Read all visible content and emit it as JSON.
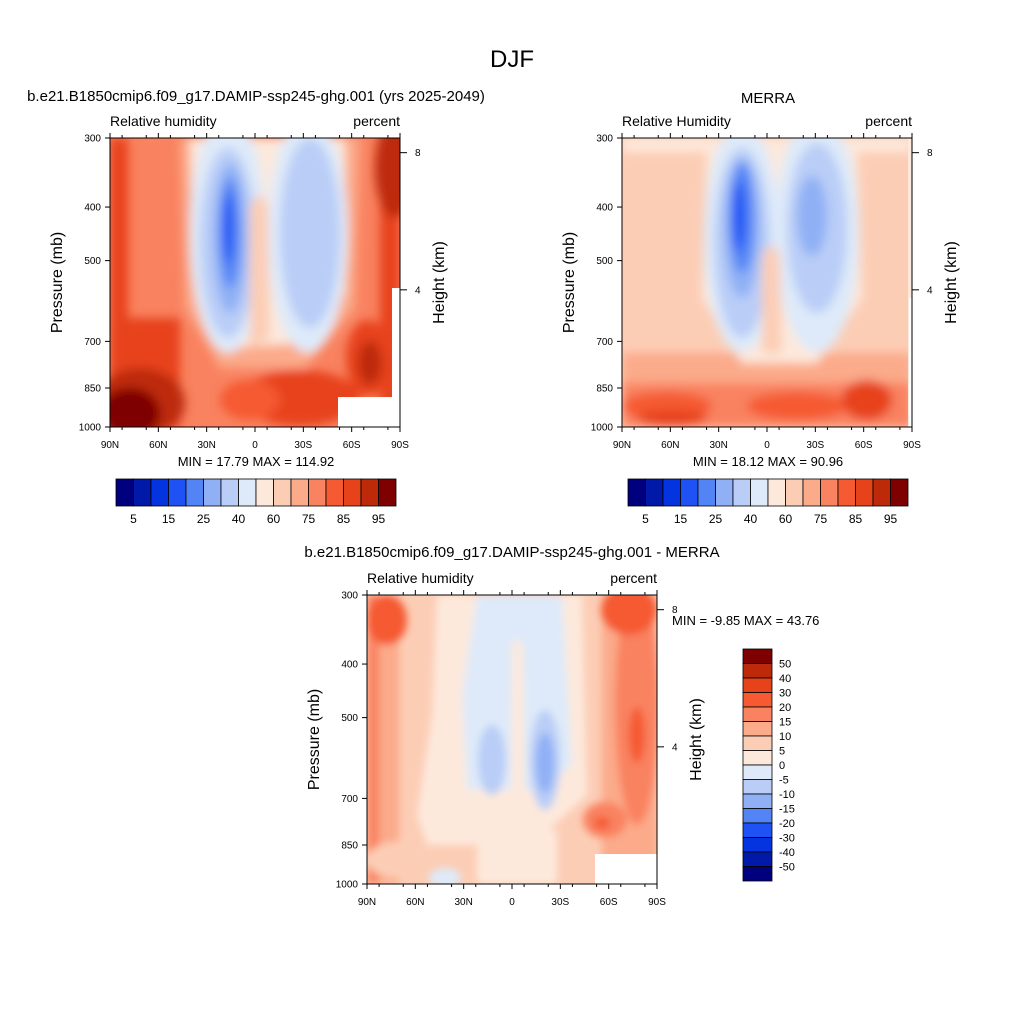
{
  "page_title": "DJF",
  "chart_data": [
    {
      "type": "contour",
      "id": "model",
      "title": "b.e21.B1850cmip6.f09_g17.DAMIP-ssp245-ghg.001 (yrs 2025-2049)",
      "left_label": "Relative humidity",
      "right_label": "percent",
      "ylabel": "Pressure (mb)",
      "ylabel_right": "Height (km)",
      "x_ticks": [
        "90N",
        "60N",
        "30N",
        "0",
        "30S",
        "60S",
        "90S"
      ],
      "y_ticks": [
        "300",
        "400",
        "500",
        "700",
        "850",
        "1000"
      ],
      "height_ticks": [
        "8",
        "4"
      ],
      "ylim": [
        1000,
        300
      ],
      "stats": "MIN =  17.79  MAX = 114.92",
      "colorbar_labels": [
        "5",
        "15",
        "25",
        "40",
        "60",
        "75",
        "85",
        "95"
      ]
    },
    {
      "type": "contour",
      "id": "merra",
      "title": "MERRA",
      "left_label": "Relative Humidity",
      "right_label": "percent",
      "ylabel": "Pressure (mb)",
      "ylabel_right": "Height (km)",
      "x_ticks": [
        "90N",
        "60N",
        "30N",
        "0",
        "30S",
        "60S",
        "90S"
      ],
      "y_ticks": [
        "300",
        "400",
        "500",
        "700",
        "850",
        "1000"
      ],
      "height_ticks": [
        "8",
        "4"
      ],
      "ylim": [
        1000,
        300
      ],
      "stats": "MIN =  18.12  MAX =  90.96",
      "colorbar_labels": [
        "5",
        "15",
        "25",
        "40",
        "60",
        "75",
        "85",
        "95"
      ]
    },
    {
      "type": "contour",
      "id": "diff",
      "title": "b.e21.B1850cmip6.f09_g17.DAMIP-ssp245-ghg.001 - MERRA",
      "left_label": "Relative humidity",
      "right_label": "percent",
      "ylabel": "Pressure (mb)",
      "ylabel_right": "Height (km)",
      "x_ticks": [
        "90N",
        "60N",
        "30N",
        "0",
        "30S",
        "60S",
        "90S"
      ],
      "y_ticks": [
        "300",
        "400",
        "500",
        "700",
        "850",
        "1000"
      ],
      "height_ticks": [
        "8",
        "4"
      ],
      "ylim": [
        1000,
        300
      ],
      "stats": "MIN =  -9.85  MAX =  43.76",
      "colorbar_labels": [
        "50",
        "40",
        "30",
        "20",
        "15",
        "10",
        "5",
        "0",
        "-5",
        "-10",
        "-15",
        "-20",
        "-30",
        "-40",
        "-50"
      ]
    }
  ],
  "colors": {
    "rh_scale": [
      "#00007f",
      "#0019a8",
      "#0433e0",
      "#1e52f5",
      "#5384f5",
      "#8fb0f5",
      "#b9cdf7",
      "#deeaf9",
      "#fde9dc",
      "#fccdb5",
      "#fbaa8a",
      "#f98260",
      "#f55a32",
      "#e7431a",
      "#bd2a0a",
      "#7f0000"
    ],
    "diff_scale": [
      "#7f0000",
      "#bd2a0a",
      "#e7431a",
      "#f55a32",
      "#f98260",
      "#fbaa8a",
      "#fccdb5",
      "#fde9dc",
      "#deeaf9",
      "#b9cdf7",
      "#8fb0f5",
      "#5384f5",
      "#1e52f5",
      "#0433e0",
      "#0019a8",
      "#00007f"
    ]
  }
}
